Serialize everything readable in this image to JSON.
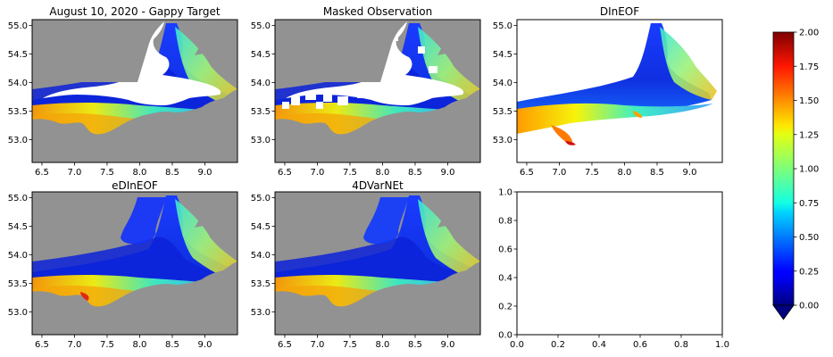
{
  "figure": {
    "colors": {
      "land": "#929292",
      "missing": "#ffffff",
      "axis": "#000000"
    }
  },
  "chart_data": [
    {
      "type": "heatmap",
      "title": "August 10, 2020 - Gappy Target",
      "xticks": [
        "6.5",
        "7.0",
        "7.5",
        "8.0",
        "8.5",
        "9.0"
      ],
      "yticks": [
        "55.0",
        "54.5",
        "54.0",
        "53.5",
        "53.0"
      ],
      "xlim": [
        6.35,
        9.5
      ],
      "ylim": [
        52.6,
        55.1
      ],
      "land_mask": true,
      "gaps": "large missing area over central German Bight"
    },
    {
      "type": "heatmap",
      "title": "Masked Observation",
      "xticks": [
        "6.5",
        "7.0",
        "7.5",
        "8.0",
        "8.5",
        "9.0"
      ],
      "yticks": [
        "55.0",
        "54.5",
        "54.0",
        "53.5",
        "53.0"
      ],
      "xlim": [
        6.35,
        9.5
      ],
      "ylim": [
        52.6,
        55.1
      ],
      "land_mask": true,
      "gaps": "target gaps plus additional rectangular masks"
    },
    {
      "type": "heatmap",
      "title": "DInEOF",
      "xticks": [
        "6.5",
        "7.0",
        "7.5",
        "8.0",
        "8.5",
        "9.0"
      ],
      "yticks": [
        "55.0",
        "54.5",
        "54.0",
        "53.5",
        "53.0"
      ],
      "xlim": [
        6.35,
        9.5
      ],
      "ylim": [
        52.6,
        55.1
      ],
      "land_mask": false
    },
    {
      "type": "heatmap",
      "title": "eDInEOF",
      "xticks": [
        "6.5",
        "7.0",
        "7.5",
        "8.0",
        "8.5",
        "9.0"
      ],
      "yticks": [
        "55.0",
        "54.5",
        "54.0",
        "53.5",
        "53.0"
      ],
      "xlim": [
        6.35,
        9.5
      ],
      "ylim": [
        52.6,
        55.1
      ],
      "land_mask": true
    },
    {
      "type": "heatmap",
      "title": "4DVarNEt",
      "xticks": [
        "6.5",
        "7.0",
        "7.5",
        "8.0",
        "8.5",
        "9.0"
      ],
      "yticks": [
        "55.0",
        "54.5",
        "54.0",
        "53.5",
        "53.0"
      ],
      "xlim": [
        6.35,
        9.5
      ],
      "ylim": [
        52.6,
        55.1
      ],
      "land_mask": true
    },
    {
      "type": "line",
      "title": "",
      "xticks": [
        "0.0",
        "0.2",
        "0.4",
        "0.6",
        "0.8",
        "1.0"
      ],
      "yticks": [
        "0.0",
        "0.2",
        "0.4",
        "0.6",
        "0.8",
        "1.0"
      ],
      "xlim": [
        0,
        1
      ],
      "ylim": [
        0,
        1
      ],
      "series": []
    }
  ],
  "colorbar": {
    "colormap": "jet",
    "range": [
      0.0,
      2.0
    ],
    "extend": "min",
    "ticks": [
      "2.00",
      "1.75",
      "1.50",
      "1.25",
      "1.00",
      "0.75",
      "0.50",
      "0.25",
      "0.00"
    ]
  }
}
